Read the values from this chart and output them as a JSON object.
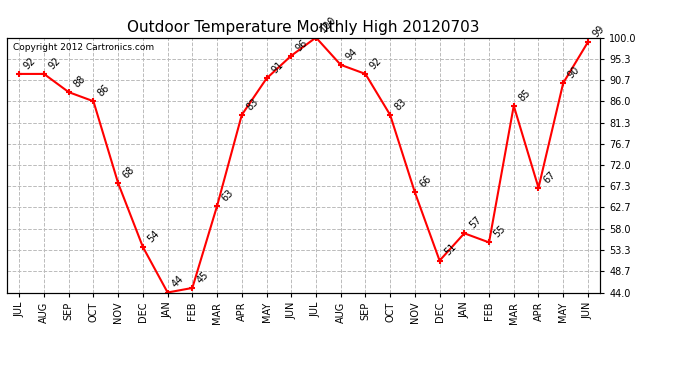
{
  "title": "Outdoor Temperature Monthly High 20120703",
  "copyright": "Copyright 2012 Cartronics.com",
  "months": [
    "JUL",
    "AUG",
    "SEP",
    "OCT",
    "NOV",
    "DEC",
    "JAN",
    "FEB",
    "MAR",
    "APR",
    "MAY",
    "JUN",
    "JUL",
    "AUG",
    "SEP",
    "OCT",
    "NOV",
    "DEC",
    "JAN",
    "FEB",
    "MAR",
    "APR",
    "MAY",
    "JUN"
  ],
  "values": [
    92,
    92,
    88,
    86,
    68,
    54,
    44,
    45,
    63,
    83,
    91,
    96,
    100,
    94,
    92,
    83,
    66,
    51,
    57,
    55,
    85,
    67,
    90,
    99
  ],
  "ylim": [
    44.0,
    100.0
  ],
  "yticks": [
    44.0,
    48.7,
    53.3,
    58.0,
    62.7,
    67.3,
    72.0,
    76.7,
    81.3,
    86.0,
    90.7,
    95.3,
    100.0
  ],
  "ytick_labels": [
    "44.0",
    "48.7",
    "53.3",
    "58.0",
    "62.7",
    "67.3",
    "72.0",
    "76.7",
    "81.3",
    "86.0",
    "90.7",
    "95.3",
    "100.0"
  ],
  "line_color": "red",
  "marker": "+",
  "bg_color": "white",
  "grid_color": "#bbbbbb",
  "title_fontsize": 11,
  "label_fontsize": 7,
  "annot_fontsize": 7,
  "copyright_fontsize": 6.5
}
